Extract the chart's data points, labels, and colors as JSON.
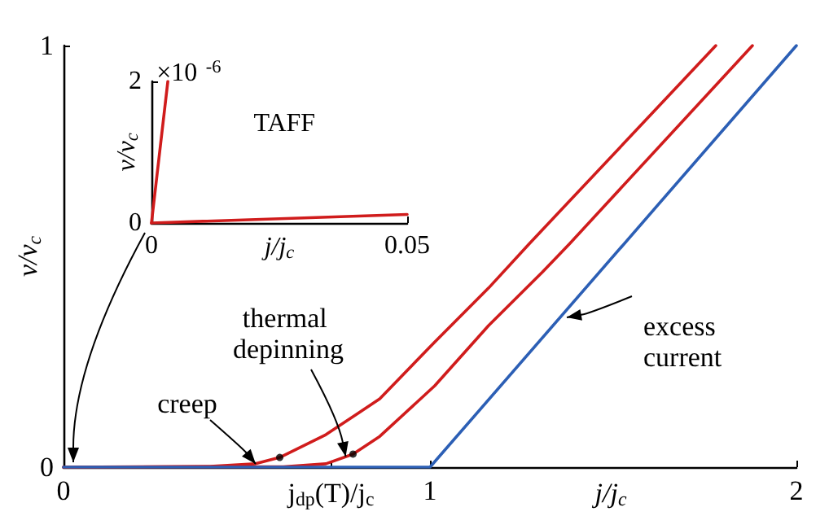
{
  "chart_data": [
    {
      "type": "line",
      "xlabel": "j/j$_{c}$",
      "ylabel": "v/v$_{c}$",
      "xlim": [
        0,
        2
      ],
      "ylim": [
        0,
        1
      ],
      "xticks": [
        0,
        {
          "value": 0.73,
          "label": "j$_{dp}$(T)/j$_{c}$"
        },
        1,
        2
      ],
      "yticks": [
        0,
        1
      ],
      "marker": "none",
      "series": [
        {
          "color": "#d01c1c",
          "x": [
            0,
            0.4,
            0.524,
            0.59,
            0.716,
            0.863,
            1.013,
            1.16,
            1.27,
            1.78
          ],
          "values": [
            0,
            0.002,
            0.008,
            0.023,
            0.077,
            0.162,
            0.297,
            0.425,
            0.529,
            1
          ]
        },
        {
          "color": "#d01c1c",
          "x": [
            0,
            0.6,
            0.716,
            0.79,
            0.863,
            1.013,
            1.16,
            1.307,
            1.38,
            1.88
          ],
          "values": [
            0,
            0.001,
            0.008,
            0.031,
            0.073,
            0.193,
            0.336,
            0.463,
            0.529,
            1
          ]
        },
        {
          "color": "#2c5fb5",
          "x": [
            0,
            1,
            2
          ],
          "values": [
            0,
            0,
            1
          ]
        },
        {
          "type": "scatter",
          "marker": "circle",
          "color": "#000000",
          "x": [
            0.59,
            0.79
          ],
          "values": [
            0.023,
            0.031
          ]
        }
      ],
      "annotations": [
        "creep",
        {
          "text": "thermal depinning",
          "x": 0.77,
          "y": 0.025
        },
        "excess current"
      ]
    },
    {
      "type": "line",
      "xlabel": "j/j$_{c}$",
      "ylabel": "v/v$_{c}$",
      "xlim": [
        0,
        0.05
      ],
      "ylim": [
        0,
        2
      ],
      "xticks": [
        0,
        0.05
      ],
      "yticks": [
        0,
        2
      ],
      "marker": "none",
      "series": [
        {
          "color": "#d01c1c",
          "x": [
            0,
            0.0032
          ],
          "values": [
            0,
            2
          ]
        },
        {
          "color": "#d01c1c",
          "x": [
            0,
            0.05
          ],
          "values": [
            0,
            0.12
          ]
        }
      ],
      "annotations": [
        "×10$^{-6}$",
        "TAFF"
      ]
    }
  ]
}
